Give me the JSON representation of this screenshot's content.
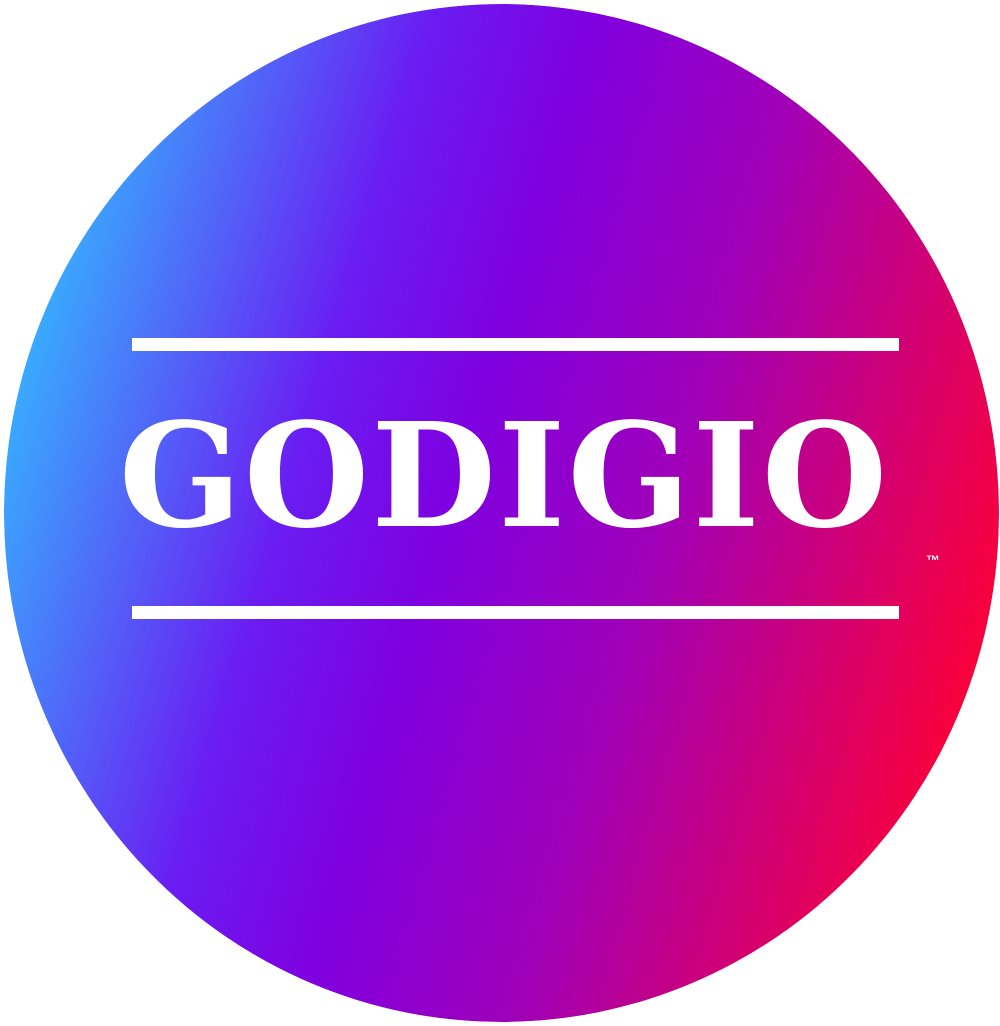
{
  "logo": {
    "wordmark": "GODIGIO",
    "trademark": "™",
    "colors": {
      "gradient_start": "#36b4ff",
      "gradient_mid_1": "#6a1cf2",
      "gradient_mid_2": "#7f00e0",
      "gradient_mid_3": "#a000b8",
      "gradient_end": "#ff0033",
      "text": "#ffffff",
      "background": "#ffffff"
    }
  }
}
